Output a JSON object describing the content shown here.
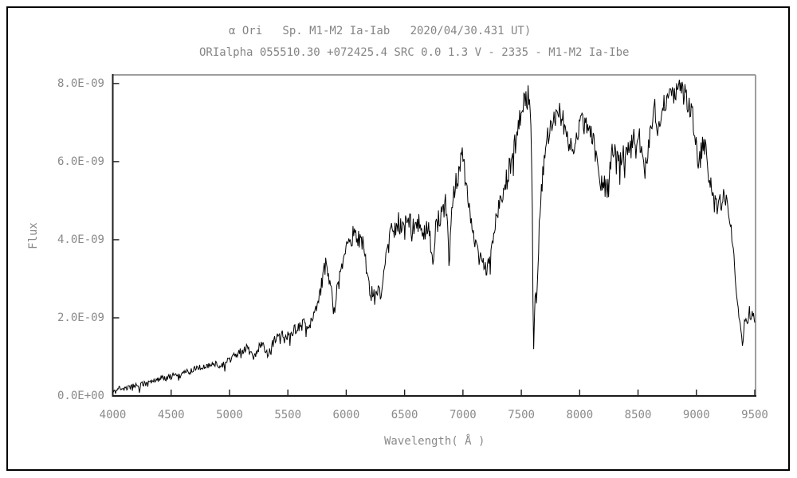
{
  "window": {
    "border_color": "#000000",
    "background": "#ffffff"
  },
  "chart_data": {
    "type": "line",
    "title": "α Ori   Sp. M1-M2 Ia-Iab   2020/04/30.431 UT)",
    "subtitle": "ORIalpha 055510.30 +072425.4 SRC 0.0 1.3 V - 2335 - M1-M2 Ia-Ibe",
    "xlabel": "Wavelength( Å )",
    "ylabel": "Flux",
    "xlim": [
      4000,
      9500
    ],
    "ylim_exp9": [
      0,
      8.2
    ],
    "y_unit_exponent": -9,
    "grid": false,
    "legend": "none",
    "x_ticks": [
      4000,
      4500,
      5000,
      5500,
      6000,
      6500,
      7000,
      7500,
      8000,
      8500,
      9000,
      9500
    ],
    "y_ticks": [
      {
        "value": 0.0,
        "label": "0.0E+00"
      },
      {
        "value": 2.0,
        "label": "2.0E-09"
      },
      {
        "value": 4.0,
        "label": "4.0E-09"
      },
      {
        "value": 6.0,
        "label": "6.0E-09"
      },
      {
        "value": 8.0,
        "label": "8.0E-09"
      }
    ],
    "colors": {
      "line": "#000000",
      "axis": "#1c1c1c",
      "frame_gray": "#9e9e9e",
      "text": "#8a8a8a"
    },
    "noise": {
      "seed": 20200430,
      "step": 6,
      "base": 0.055,
      "scale": 0.05,
      "max": 0.3,
      "dip_prob": 0.05
    },
    "series": [
      {
        "name": "alpha Ori spectrum (flux in 1e-9 units)",
        "points": [
          [
            4000,
            0.12
          ],
          [
            4008,
            0.04
          ],
          [
            4016,
            0.2
          ],
          [
            4025,
            0.08
          ],
          [
            4040,
            0.16
          ],
          [
            4060,
            0.22
          ],
          [
            4075,
            0.12
          ],
          [
            4090,
            0.2
          ],
          [
            4110,
            0.17
          ],
          [
            4130,
            0.22
          ],
          [
            4150,
            0.2
          ],
          [
            4170,
            0.28
          ],
          [
            4190,
            0.24
          ],
          [
            4210,
            0.28
          ],
          [
            4226,
            0.2
          ],
          [
            4245,
            0.3
          ],
          [
            4270,
            0.33
          ],
          [
            4300,
            0.3
          ],
          [
            4330,
            0.38
          ],
          [
            4360,
            0.4
          ],
          [
            4390,
            0.44
          ],
          [
            4420,
            0.46
          ],
          [
            4450,
            0.44
          ],
          [
            4480,
            0.5
          ],
          [
            4510,
            0.52
          ],
          [
            4540,
            0.56
          ],
          [
            4565,
            0.5
          ],
          [
            4590,
            0.57
          ],
          [
            4620,
            0.6
          ],
          [
            4650,
            0.63
          ],
          [
            4680,
            0.66
          ],
          [
            4710,
            0.68
          ],
          [
            4740,
            0.72
          ],
          [
            4770,
            0.74
          ],
          [
            4800,
            0.77
          ],
          [
            4830,
            0.79
          ],
          [
            4860,
            0.8
          ],
          [
            4895,
            0.85
          ],
          [
            4920,
            0.72
          ],
          [
            4950,
            0.8
          ],
          [
            4980,
            0.9
          ],
          [
            5010,
            0.96
          ],
          [
            5040,
            1.04
          ],
          [
            5080,
            1.1
          ],
          [
            5120,
            1.18
          ],
          [
            5150,
            1.25
          ],
          [
            5180,
            1.1
          ],
          [
            5205,
            1.0
          ],
          [
            5235,
            1.15
          ],
          [
            5265,
            1.28
          ],
          [
            5290,
            1.32
          ],
          [
            5315,
            1.18
          ],
          [
            5340,
            1.12
          ],
          [
            5370,
            1.35
          ],
          [
            5400,
            1.45
          ],
          [
            5425,
            1.52
          ],
          [
            5450,
            1.62
          ],
          [
            5470,
            1.45
          ],
          [
            5490,
            1.58
          ],
          [
            5515,
            1.5
          ],
          [
            5540,
            1.64
          ],
          [
            5565,
            1.7
          ],
          [
            5590,
            1.72
          ],
          [
            5620,
            1.8
          ],
          [
            5650,
            1.88
          ],
          [
            5680,
            1.76
          ],
          [
            5705,
            1.95
          ],
          [
            5730,
            2.1
          ],
          [
            5755,
            2.3
          ],
          [
            5775,
            2.65
          ],
          [
            5800,
            3.0
          ],
          [
            5820,
            3.35
          ],
          [
            5835,
            3.52
          ],
          [
            5850,
            3.2
          ],
          [
            5870,
            2.8
          ],
          [
            5893,
            2.04
          ],
          [
            5915,
            2.6
          ],
          [
            5940,
            2.95
          ],
          [
            5965,
            3.25
          ],
          [
            5990,
            3.55
          ],
          [
            6015,
            3.85
          ],
          [
            6040,
            4.0
          ],
          [
            6070,
            4.18
          ],
          [
            6090,
            3.95
          ],
          [
            6110,
            4.05
          ],
          [
            6135,
            3.88
          ],
          [
            6155,
            3.8
          ],
          [
            6175,
            3.25
          ],
          [
            6195,
            2.8
          ],
          [
            6215,
            2.6
          ],
          [
            6235,
            2.72
          ],
          [
            6255,
            2.52
          ],
          [
            6275,
            2.65
          ],
          [
            6295,
            2.62
          ],
          [
            6315,
            3.0
          ],
          [
            6335,
            3.5
          ],
          [
            6360,
            3.95
          ],
          [
            6380,
            4.15
          ],
          [
            6405,
            4.3
          ],
          [
            6425,
            4.18
          ],
          [
            6450,
            4.45
          ],
          [
            6480,
            4.28
          ],
          [
            6520,
            4.65
          ],
          [
            6550,
            4.4
          ],
          [
            6580,
            4.25
          ],
          [
            6610,
            4.45
          ],
          [
            6640,
            4.3
          ],
          [
            6670,
            4.15
          ],
          [
            6700,
            4.32
          ],
          [
            6720,
            4.0
          ],
          [
            6740,
            3.3
          ],
          [
            6765,
            4.2
          ],
          [
            6790,
            4.5
          ],
          [
            6820,
            4.72
          ],
          [
            6850,
            4.9
          ],
          [
            6868,
            4.4
          ],
          [
            6882,
            3.05
          ],
          [
            6900,
            4.6
          ],
          [
            6930,
            5.3
          ],
          [
            6960,
            5.7
          ],
          [
            6990,
            6.25
          ],
          [
            7010,
            5.9
          ],
          [
            7040,
            5.0
          ],
          [
            7070,
            4.5
          ],
          [
            7100,
            4.0
          ],
          [
            7130,
            3.6
          ],
          [
            7165,
            3.38
          ],
          [
            7200,
            3.25
          ],
          [
            7235,
            3.62
          ],
          [
            7265,
            4.3
          ],
          [
            7300,
            4.85
          ],
          [
            7340,
            5.2
          ],
          [
            7375,
            5.55
          ],
          [
            7410,
            5.95
          ],
          [
            7445,
            6.45
          ],
          [
            7475,
            6.8
          ],
          [
            7500,
            7.3
          ],
          [
            7520,
            7.45
          ],
          [
            7545,
            7.55
          ],
          [
            7562,
            7.69
          ],
          [
            7580,
            7.45
          ],
          [
            7592,
            5.5
          ],
          [
            7600,
            2.6
          ],
          [
            7606,
            1.16
          ],
          [
            7615,
            2.2
          ],
          [
            7622,
            2.62
          ],
          [
            7630,
            2.45
          ],
          [
            7645,
            3.6
          ],
          [
            7660,
            4.8
          ],
          [
            7678,
            5.4
          ],
          [
            7695,
            6.06
          ],
          [
            7720,
            6.5
          ],
          [
            7745,
            6.85
          ],
          [
            7780,
            7.2
          ],
          [
            7805,
            7.4
          ],
          [
            7830,
            7.3
          ],
          [
            7860,
            7.0
          ],
          [
            7895,
            6.6
          ],
          [
            7930,
            6.25
          ],
          [
            7960,
            6.45
          ],
          [
            8000,
            6.9
          ],
          [
            8030,
            7.0
          ],
          [
            8065,
            6.92
          ],
          [
            8100,
            6.6
          ],
          [
            8130,
            6.3
          ],
          [
            8160,
            5.8
          ],
          [
            8190,
            5.45
          ],
          [
            8220,
            5.35
          ],
          [
            8245,
            5.3
          ],
          [
            8268,
            6.0
          ],
          [
            8288,
            6.45
          ],
          [
            8310,
            6.05
          ],
          [
            8340,
            5.95
          ],
          [
            8370,
            6.2
          ],
          [
            8400,
            6.1
          ],
          [
            8430,
            6.5
          ],
          [
            8462,
            6.55
          ],
          [
            8495,
            6.45
          ],
          [
            8515,
            6.6
          ],
          [
            8535,
            6.1
          ],
          [
            8557,
            5.6
          ],
          [
            8580,
            6.2
          ],
          [
            8612,
            6.8
          ],
          [
            8645,
            7.55
          ],
          [
            8662,
            6.5
          ],
          [
            8685,
            7.05
          ],
          [
            8712,
            7.35
          ],
          [
            8740,
            7.55
          ],
          [
            8772,
            7.7
          ],
          [
            8800,
            7.65
          ],
          [
            8830,
            7.8
          ],
          [
            8857,
            7.92
          ],
          [
            8885,
            7.75
          ],
          [
            8912,
            7.65
          ],
          [
            8940,
            7.45
          ],
          [
            8970,
            7.1
          ],
          [
            9000,
            6.4
          ],
          [
            9015,
            5.8
          ],
          [
            9040,
            6.2
          ],
          [
            9062,
            6.45
          ],
          [
            9082,
            6.2
          ],
          [
            9110,
            5.6
          ],
          [
            9140,
            5.05
          ],
          [
            9170,
            4.9
          ],
          [
            9200,
            4.95
          ],
          [
            9230,
            5.02
          ],
          [
            9260,
            4.85
          ],
          [
            9290,
            4.6
          ],
          [
            9320,
            3.6
          ],
          [
            9350,
            2.4
          ],
          [
            9375,
            1.72
          ],
          [
            9397,
            1.42
          ],
          [
            9412,
            1.85
          ],
          [
            9427,
            2.1
          ],
          [
            9440,
            1.7
          ],
          [
            9455,
            2.25
          ],
          [
            9468,
            1.95
          ],
          [
            9482,
            2.15
          ],
          [
            9500,
            1.88
          ]
        ]
      }
    ]
  }
}
